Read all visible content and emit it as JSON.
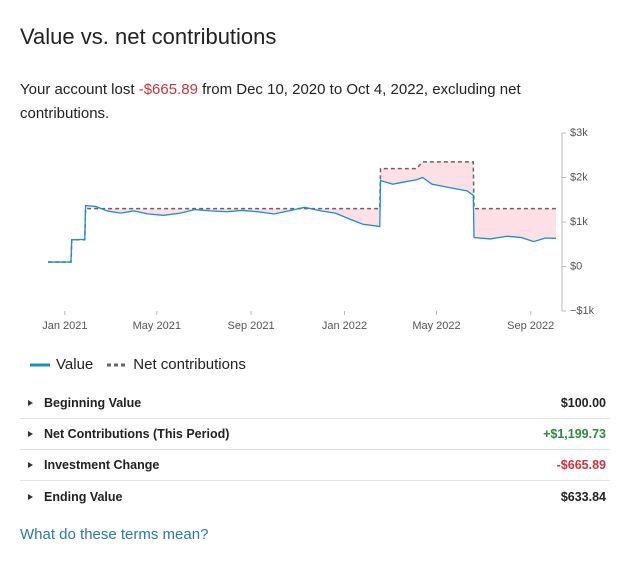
{
  "title": "Value vs. net contributions",
  "summary": {
    "prefix": "Your account lost ",
    "amount": "-$665.89",
    "suffix": " from Dec 10, 2020 to Oct 4, 2022, excluding net contributions."
  },
  "chart_data": {
    "type": "line",
    "x": [
      "2020-12-10",
      "2021-01-09",
      "2021-01-10",
      "2021-01-27",
      "2021-01-28",
      "2021-02-10",
      "2021-02-25",
      "2021-03-15",
      "2021-04-01",
      "2021-04-20",
      "2021-05-10",
      "2021-06-01",
      "2021-06-20",
      "2021-07-10",
      "2021-08-01",
      "2021-08-20",
      "2021-09-10",
      "2021-10-01",
      "2021-10-20",
      "2021-11-10",
      "2021-12-01",
      "2021-12-20",
      "2022-01-10",
      "2022-01-25",
      "2022-02-16",
      "2022-02-17",
      "2022-03-05",
      "2022-03-20",
      "2022-04-05",
      "2022-04-13",
      "2022-04-25",
      "2022-05-10",
      "2022-05-25",
      "2022-06-10",
      "2022-06-18",
      "2022-06-19",
      "2022-07-10",
      "2022-08-01",
      "2022-08-20",
      "2022-09-05",
      "2022-09-20",
      "2022-10-04"
    ],
    "series": [
      {
        "name": "Value",
        "color": "#1c8fc9",
        "dashed": false,
        "values": [
          100,
          100,
          600,
          610,
          1370,
          1350,
          1250,
          1200,
          1250,
          1180,
          1150,
          1200,
          1280,
          1250,
          1230,
          1260,
          1230,
          1180,
          1250,
          1330,
          1250,
          1200,
          1050,
          950,
          900,
          1930,
          1850,
          1900,
          1950,
          2000,
          1850,
          1800,
          1750,
          1700,
          1600,
          650,
          620,
          680,
          650,
          560,
          640,
          633.84
        ]
      },
      {
        "name": "Net contributions",
        "color": "#666666",
        "dashed": true,
        "values": [
          100,
          100,
          600,
          600,
          1300,
          1300,
          1300,
          1300,
          1300,
          1300,
          1300,
          1300,
          1300,
          1300,
          1300,
          1300,
          1300,
          1300,
          1300,
          1300,
          1300,
          1300,
          1300,
          1300,
          1300,
          2200,
          2200,
          2200,
          2200,
          2350,
          2350,
          2350,
          2350,
          2350,
          2350,
          1299.73,
          1299.73,
          1299.73,
          1299.73,
          1299.73,
          1299.73,
          1299.73
        ]
      }
    ],
    "fill_between": "#fde0e5",
    "xlim": [
      "2020-12-10",
      "2022-10-04"
    ],
    "xticks": [
      {
        "value": "2021-01-01",
        "label": "Jan 2021"
      },
      {
        "value": "2021-05-01",
        "label": "May 2021"
      },
      {
        "value": "2021-09-01",
        "label": "Sep 2021"
      },
      {
        "value": "2022-01-01",
        "label": "Jan 2022"
      },
      {
        "value": "2022-05-01",
        "label": "May 2022"
      },
      {
        "value": "2022-09-01",
        "label": "Sep 2022"
      }
    ],
    "ylim": [
      -1000,
      3000
    ],
    "yticks": [
      {
        "value": 3000,
        "label": "$3k"
      },
      {
        "value": 2000,
        "label": "$2k"
      },
      {
        "value": 1000,
        "label": "$1k"
      },
      {
        "value": 0,
        "label": "$0"
      },
      {
        "value": -1000,
        "label": "−$1k"
      }
    ]
  },
  "table": {
    "rows": [
      {
        "label": "Beginning Value",
        "value": "$100.00",
        "color": "#222222"
      },
      {
        "label": "Net Contributions (This Period)",
        "value": "+$1,199.73",
        "color": "#2e8b3a"
      },
      {
        "label": "Investment Change",
        "value": "-$665.89",
        "color": "#d0343a"
      },
      {
        "label": "Ending Value",
        "value": "$633.84",
        "color": "#222222"
      }
    ]
  },
  "link": "What do these terms mean?"
}
